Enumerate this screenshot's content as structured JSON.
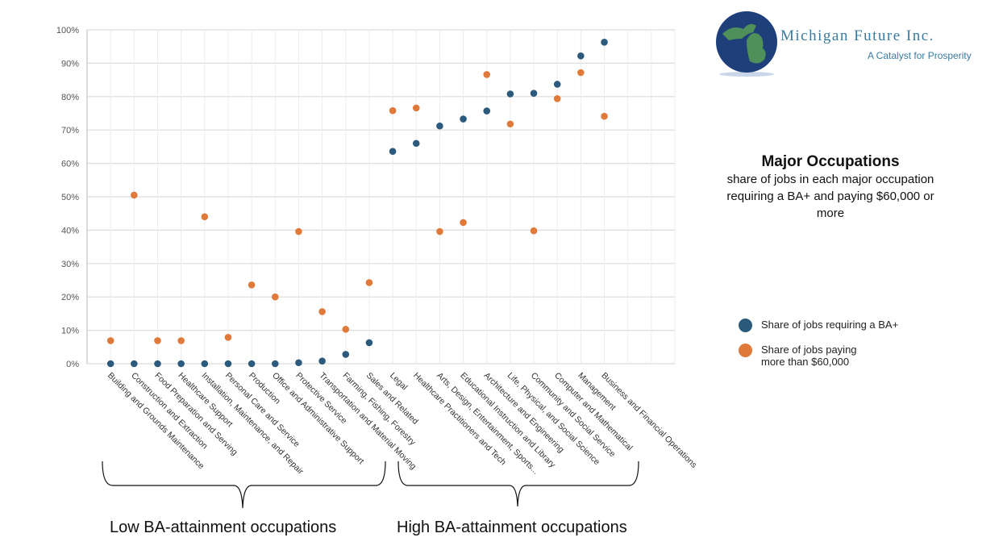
{
  "chart_data": {
    "type": "scatter",
    "title": "Major Occupations",
    "subtitle": "share of jobs in each major occupation requiring a BA+ and paying $60,000 or more",
    "xlabel": "",
    "ylabel": "",
    "ylim": [
      0,
      100
    ],
    "yticks": [
      "0%",
      "10%",
      "20%",
      "30%",
      "40%",
      "50%",
      "60%",
      "70%",
      "80%",
      "90%",
      "100%"
    ],
    "grid": true,
    "legend_position": "right",
    "categories": [
      "Building and Grounds Maintenance",
      "Construction and Extraction",
      "Food Preparation and Serving",
      "Healthcare Support",
      "Installation, Maintenance, and Repair",
      "Personal Care and Service",
      "Production",
      "Office and Administrative Support",
      "Protective Service",
      "Transportation and Material Moving",
      "Farming, Fishing, Forestry",
      "Sales and Related",
      "Legal",
      "Healthcare Practitioners and Tech",
      "Arts, Design, Entertainment, Sports...",
      "Educational Instruction and Library",
      "Architecture and Engineering",
      "Life, Physical, and Social Science",
      "Community and Social Service",
      "Computer and Mathematical",
      "Management",
      "Business and Financial Operations"
    ],
    "series": [
      {
        "name": "Share of jobs requiring a BA+",
        "color": "#2b5a7c",
        "values": [
          0,
          0,
          0,
          0,
          0,
          0,
          0,
          0,
          0.3,
          0.8,
          2.8,
          6.3,
          63.6,
          66.0,
          71.2,
          73.3,
          75.7,
          80.8,
          81.0,
          83.7,
          92.2,
          96.3
        ]
      },
      {
        "name": "Share of jobs paying more than $60,000",
        "color": "#e07a3b",
        "values": [
          6.9,
          50.5,
          6.9,
          6.9,
          44.0,
          7.9,
          23.6,
          20.0,
          39.6,
          15.6,
          10.3,
          24.3,
          75.8,
          76.6,
          39.6,
          42.3,
          86.6,
          71.8,
          39.8,
          79.4,
          87.2,
          74.1
        ]
      }
    ],
    "groups": [
      {
        "label": "Low BA-attainment occupations",
        "from": 0,
        "to": 11
      },
      {
        "label": "High BA-attainment occupations",
        "from": 12,
        "to": 21
      }
    ]
  },
  "logo": {
    "name": "Michigan Future Inc.",
    "tagline": "A Catalyst for Prosperity"
  }
}
